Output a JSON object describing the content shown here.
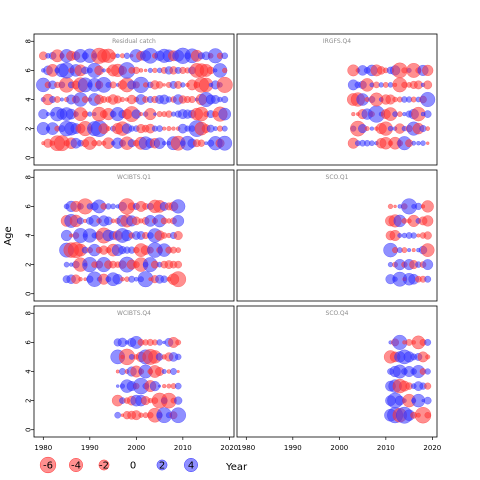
{
  "chart_data": {
    "type": "scatter",
    "subtype": "bubble-residuals",
    "ylabel": "Age",
    "xlabel": "Year",
    "xlim": [
      1978,
      2021
    ],
    "ylim": [
      -0.5,
      8.5
    ],
    "x_ticks": [
      1980,
      1990,
      2000,
      2010,
      2020
    ],
    "y_ticks": [
      0,
      2,
      4,
      6,
      8
    ],
    "colors": {
      "positive": "#3333ff",
      "negative": "#ff3333"
    },
    "legend": {
      "placement": "bottom-left",
      "items": [
        {
          "label": "-6",
          "value": -6
        },
        {
          "label": "-4",
          "value": -4
        },
        {
          "label": "-2",
          "value": -2
        },
        {
          "label": "0",
          "value": 0
        },
        {
          "label": "2",
          "value": 2
        },
        {
          "label": "4",
          "value": 4
        }
      ]
    },
    "panels": [
      {
        "title": "Residual catch",
        "ages": [
          1,
          2,
          3,
          4,
          5,
          6,
          7
        ],
        "years": [
          1980,
          2019
        ],
        "seed": 11
      },
      {
        "title": "IRGFS.Q4",
        "ages": [
          1,
          2,
          3,
          4,
          5,
          6
        ],
        "years": [
          2003,
          2019
        ],
        "seed": 23
      },
      {
        "title": "WCIBTS.Q1",
        "ages": [
          1,
          2,
          3,
          4,
          5,
          6
        ],
        "years": [
          1985,
          2009
        ],
        "seed": 37
      },
      {
        "title": "SCO.Q1",
        "ages": [
          1,
          2,
          3,
          4,
          5,
          6
        ],
        "years": [
          2011,
          2019
        ],
        "seed": 41
      },
      {
        "title": "WCIBTS.Q4",
        "ages": [
          1,
          2,
          3,
          4,
          5,
          6
        ],
        "years": [
          1996,
          2009
        ],
        "seed": 53
      },
      {
        "title": "SCO.Q4",
        "ages": [
          1,
          2,
          3,
          4,
          5,
          6
        ],
        "years": [
          2011,
          2019
        ],
        "seed": 67
      }
    ]
  }
}
